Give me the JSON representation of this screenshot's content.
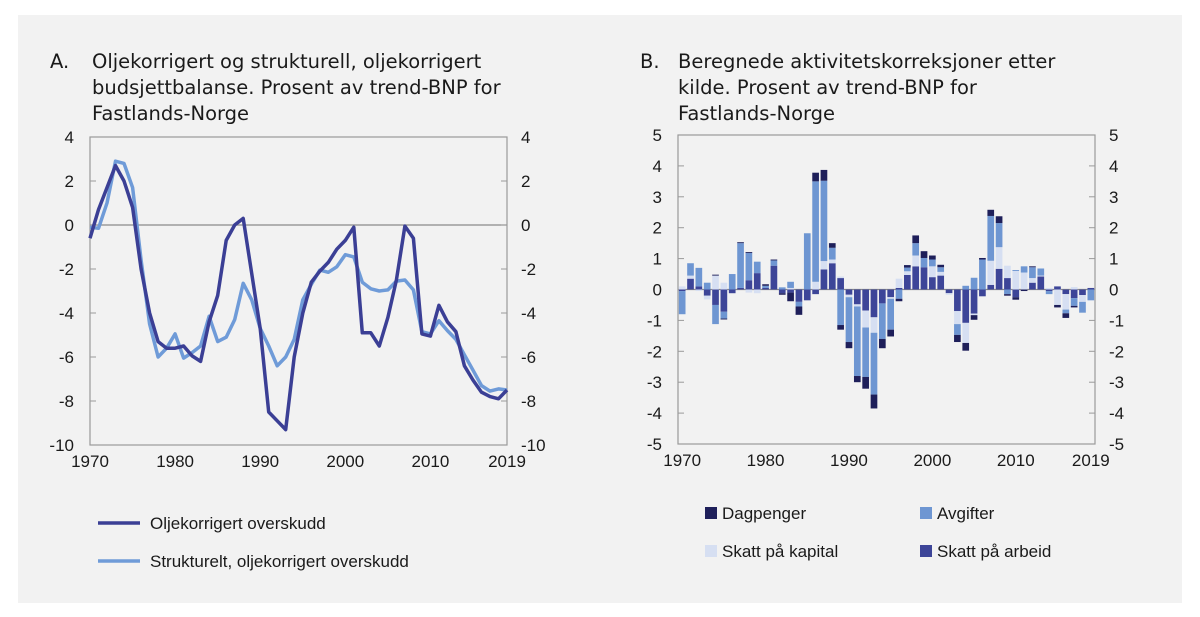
{
  "chart_data": [
    {
      "type": "line",
      "panel": "A.",
      "title_lines": [
        "Oljekorrigert og strukturell, oljekorrigert",
        "budsjettbalanse. Prosent av trend-BNP for",
        "Fastlands-Norge"
      ],
      "x": [
        1970,
        1971,
        1972,
        1973,
        1974,
        1975,
        1976,
        1977,
        1978,
        1979,
        1980,
        1981,
        1982,
        1983,
        1984,
        1985,
        1986,
        1987,
        1988,
        1989,
        1990,
        1991,
        1992,
        1993,
        1994,
        1995,
        1996,
        1997,
        1998,
        1999,
        2000,
        2001,
        2002,
        2003,
        2004,
        2005,
        2006,
        2007,
        2008,
        2009,
        2010,
        2011,
        2012,
        2013,
        2014,
        2015,
        2016,
        2017,
        2018,
        2019
      ],
      "xticks": [
        "1970",
        "1980",
        "1990",
        "2000",
        "2010",
        "2019"
      ],
      "yticks": [
        "4",
        "2",
        "0",
        "-2",
        "-4",
        "-6",
        "-8",
        "-10"
      ],
      "ylim": [
        -10,
        4
      ],
      "xlim": [
        1970,
        2019
      ],
      "legend_position": "bottom",
      "series": [
        {
          "name": "Oljekorrigert overskudd",
          "color": "#3b3f95",
          "values": [
            -0.6,
            0.7,
            1.7,
            2.7,
            2.0,
            0.8,
            -2.0,
            -4.0,
            -5.3,
            -5.6,
            -5.6,
            -5.5,
            -5.95,
            -6.2,
            -4.4,
            -3.2,
            -0.7,
            0.0,
            0.3,
            -2.2,
            -4.7,
            -8.5,
            -8.9,
            -9.3,
            -6.0,
            -4.0,
            -2.6,
            -2.1,
            -1.7,
            -1.1,
            -0.7,
            -0.1,
            -4.9,
            -4.9,
            -5.5,
            -4.2,
            -2.5,
            -0.05,
            -0.6,
            -4.95,
            -5.05,
            -3.65,
            -4.4,
            -4.85,
            -6.4,
            -7.05,
            -7.6,
            -7.8,
            -7.9,
            -7.5
          ]
        },
        {
          "name": "Strukturelt, oljekorrigert overskudd",
          "color": "#6f9bd8",
          "values": [
            -0.1,
            -0.15,
            1.0,
            2.9,
            2.8,
            1.7,
            -1.6,
            -4.5,
            -6.0,
            -5.6,
            -4.95,
            -6.05,
            -5.8,
            -5.5,
            -4.15,
            -5.3,
            -5.1,
            -4.3,
            -2.65,
            -3.4,
            -4.7,
            -5.5,
            -6.4,
            -6.0,
            -5.2,
            -3.4,
            -2.7,
            -2.05,
            -2.15,
            -1.9,
            -1.35,
            -1.45,
            -2.6,
            -2.9,
            -3.0,
            -2.95,
            -2.55,
            -2.5,
            -2.95,
            -4.85,
            -4.95,
            -4.35,
            -4.8,
            -5.2,
            -5.9,
            -6.6,
            -7.3,
            -7.55,
            -7.45,
            -7.5
          ]
        }
      ]
    },
    {
      "type": "bar",
      "stacked": true,
      "panel": "B.",
      "title_lines": [
        "Beregnede aktivitetskorreksjoner etter",
        "kilde. Prosent av trend-BNP for",
        "Fastlands-Norge"
      ],
      "x": [
        1970,
        1971,
        1972,
        1973,
        1974,
        1975,
        1976,
        1977,
        1978,
        1979,
        1980,
        1981,
        1982,
        1983,
        1984,
        1985,
        1986,
        1987,
        1988,
        1989,
        1990,
        1991,
        1992,
        1993,
        1994,
        1995,
        1996,
        1997,
        1998,
        1999,
        2000,
        2001,
        2002,
        2003,
        2004,
        2005,
        2006,
        2007,
        2008,
        2009,
        2010,
        2011,
        2012,
        2013,
        2014,
        2015,
        2016,
        2017,
        2018,
        2019
      ],
      "xticks": [
        "1970",
        "1980",
        "1990",
        "2000",
        "2010",
        "2019"
      ],
      "yticks": [
        "5",
        "4",
        "3",
        "2",
        "1",
        "0",
        "-1",
        "-2",
        "-3",
        "-4",
        "-5"
      ],
      "ylim": [
        -5,
        5
      ],
      "legend_position": "bottom",
      "series": [
        {
          "name": "Skatt på arbeid",
          "color": "#3d4598",
          "values": [
            -0.05,
            0.35,
            0.1,
            -0.2,
            -0.5,
            -0.72,
            -0.12,
            0.05,
            0.3,
            0.53,
            0.05,
            0.77,
            -0.12,
            -0.1,
            -0.4,
            -0.35,
            -0.15,
            0.65,
            0.85,
            0.37,
            -0.17,
            -0.48,
            -0.68,
            -0.9,
            -0.45,
            -0.25,
            0.05,
            0.47,
            0.75,
            0.72,
            0.4,
            0.45,
            -0.12,
            -0.7,
            -1.08,
            -0.78,
            -0.22,
            0.15,
            0.67,
            0.37,
            -0.25,
            0,
            0.22,
            0.42,
            -0.05,
            0.1,
            -0.15,
            -0.28,
            -0.18,
            0.05
          ]
        },
        {
          "name": "Skatt på kapital",
          "color": "#d6dff2",
          "values": [
            0.1,
            0.1,
            -0.05,
            -0.12,
            0.45,
            0.22,
            0,
            0,
            -0.1,
            -0.12,
            0,
            0,
            0,
            0.05,
            0,
            0,
            0.25,
            0.27,
            0.12,
            0.05,
            -0.08,
            -0.07,
            -0.55,
            -0.5,
            0,
            -0.05,
            0.3,
            0.12,
            0.35,
            0,
            0.35,
            0.12,
            -0.05,
            -0.42,
            -0.65,
            -0.05,
            0,
            0.78,
            0.7,
            0.4,
            0.6,
            0.55,
            0.15,
            0.03,
            0.05,
            -0.5,
            -0.5,
            0.08,
            -0.22,
            0
          ]
        },
        {
          "name": "Avgifter",
          "color": "#6e96d2",
          "values": [
            -0.75,
            0.4,
            0.6,
            0.22,
            -0.62,
            -0.22,
            0.5,
            1.45,
            0.88,
            0.37,
            0.07,
            0.17,
            0.07,
            0.2,
            -0.15,
            1.82,
            3.25,
            2.6,
            0.38,
            -1.15,
            -1.45,
            -2.25,
            -1.6,
            -2.0,
            -1.15,
            -1.0,
            -0.3,
            0.12,
            0.4,
            0.3,
            0.22,
            0.15,
            0,
            -0.35,
            0.12,
            0.38,
            0.97,
            1.45,
            0.78,
            -0.15,
            0.03,
            0.2,
            0.35,
            0.23,
            -0.1,
            0,
            -0.12,
            -0.25,
            -0.35,
            -0.35
          ]
        },
        {
          "name": "Dagpenger",
          "color": "#1e1f5a",
          "values": [
            0,
            0,
            0,
            0,
            0.03,
            -0.03,
            0,
            0.03,
            0.03,
            0,
            0.05,
            0.03,
            -0.05,
            -0.28,
            -0.27,
            0,
            0.28,
            0.35,
            0.15,
            -0.15,
            -0.2,
            -0.2,
            -0.38,
            -0.45,
            -0.3,
            -0.22,
            -0.08,
            0.08,
            0.25,
            0.22,
            0.13,
            0.08,
            0,
            -0.23,
            -0.25,
            -0.15,
            0.05,
            0.2,
            0.22,
            -0.05,
            -0.08,
            -0.05,
            0.03,
            0,
            0,
            -0.08,
            -0.15,
            -0.05,
            0,
            0
          ]
        }
      ]
    }
  ]
}
